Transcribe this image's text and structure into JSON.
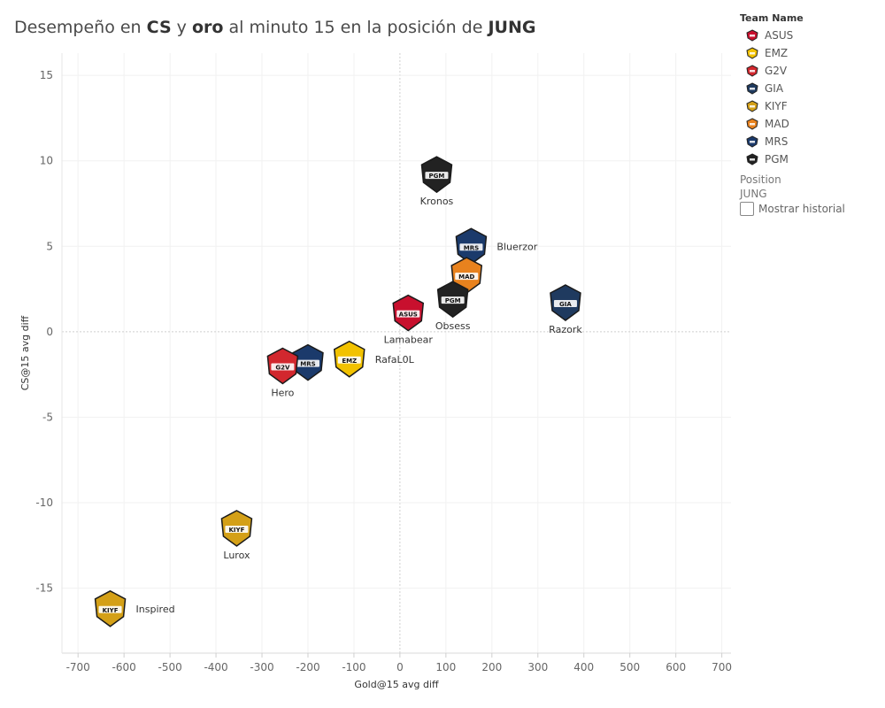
{
  "title": {
    "parts": [
      {
        "text": "Desempeño en ",
        "bold": false
      },
      {
        "text": "CS",
        "bold": true
      },
      {
        "text": " y ",
        "bold": false
      },
      {
        "text": "oro",
        "bold": true
      },
      {
        "text": " al minuto 15 en la posición de ",
        "bold": false
      },
      {
        "text": "JUNG",
        "bold": true
      }
    ]
  },
  "legend": {
    "title": "Team Name",
    "items": [
      {
        "label": "ASUS",
        "color": "#c8102e",
        "icon": "asus-icon"
      },
      {
        "label": "EMZ",
        "color": "#f2c200",
        "icon": "emz-icon"
      },
      {
        "label": "G2V",
        "color": "#d2272e",
        "icon": "g2v-icon"
      },
      {
        "label": "GIA",
        "color": "#1f3a5f",
        "icon": "gia-icon"
      },
      {
        "label": "KIYF",
        "color": "#d4a017",
        "icon": "kiyf-icon"
      },
      {
        "label": "MAD",
        "color": "#e8821e",
        "icon": "mad-icon"
      },
      {
        "label": "MRS",
        "color": "#1b3a6b",
        "icon": "mrs-icon"
      },
      {
        "label": "PGM",
        "color": "#222222",
        "icon": "pgm-icon"
      }
    ]
  },
  "filters": {
    "position_title": "Position",
    "position_value": "JUNG",
    "history_label": "Mostrar historial"
  },
  "chart_data": {
    "type": "scatter",
    "xlabel": "Gold@15 avg diff",
    "ylabel": "CS@15 avg diff",
    "xlim": [
      -735,
      720
    ],
    "ylim": [
      -18.8,
      16.3
    ],
    "xticks": [
      -700,
      -600,
      -500,
      -400,
      -300,
      -200,
      -100,
      0,
      100,
      200,
      300,
      400,
      500,
      600,
      700
    ],
    "yticks": [
      15,
      10,
      5,
      0,
      -5,
      -10,
      -15
    ],
    "grid": true,
    "points": [
      {
        "player": "Kronos",
        "team": "PGM",
        "x": 80,
        "y": 9.2,
        "label_pos": "below"
      },
      {
        "player": "Bluerzor",
        "team": "MRS",
        "x": 155,
        "y": 5.0,
        "label_pos": "right"
      },
      {
        "player": "",
        "team": "MAD",
        "x": 145,
        "y": 3.3,
        "label_pos": "none"
      },
      {
        "player": "Obsess",
        "team": "PGM",
        "x": 115,
        "y": 1.9,
        "label_pos": "below"
      },
      {
        "player": "Razork",
        "team": "GIA",
        "x": 360,
        "y": 1.7,
        "label_pos": "below"
      },
      {
        "player": "Lamabear",
        "team": "ASUS",
        "x": 18,
        "y": 1.1,
        "label_pos": "below"
      },
      {
        "player": "RafaL0L",
        "team": "EMZ",
        "x": -110,
        "y": -1.6,
        "label_pos": "right"
      },
      {
        "player": "",
        "team": "MRS",
        "x": -200,
        "y": -1.8,
        "label_pos": "none"
      },
      {
        "player": "Hero",
        "team": "G2V",
        "x": -255,
        "y": -2.0,
        "label_pos": "below"
      },
      {
        "player": "Lurox",
        "team": "KIYF",
        "x": -355,
        "y": -11.5,
        "label_pos": "below"
      },
      {
        "player": "Inspired",
        "team": "KIYF",
        "x": -630,
        "y": -16.2,
        "label_pos": "right"
      }
    ]
  }
}
